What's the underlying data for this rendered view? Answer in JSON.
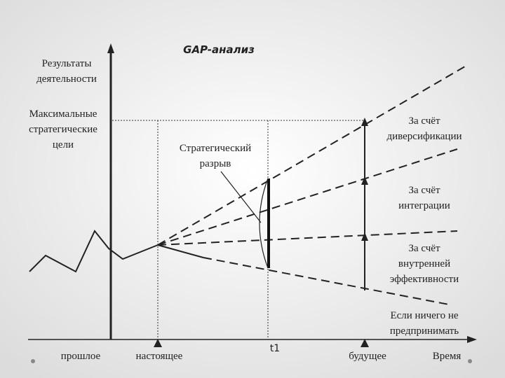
{
  "title": "GAP-анализ",
  "y_axis_label": [
    "Результаты",
    "деятельности"
  ],
  "max_goals": [
    "Максимальные",
    "стратегические",
    "цели"
  ],
  "gap_label": [
    "Стратегический",
    "разрыв"
  ],
  "scenarios": [
    [
      "За счёт",
      "диверсификации"
    ],
    [
      "За счёт",
      "интеграции"
    ],
    [
      "За счёт",
      "внутренней",
      "эффективности"
    ],
    [
      "Если ничего не",
      "предпринимать"
    ]
  ],
  "x_labels": {
    "past": "прошлое",
    "present": "настоящее",
    "t1": "t1",
    "future": "будущее",
    "time": "Время"
  }
}
